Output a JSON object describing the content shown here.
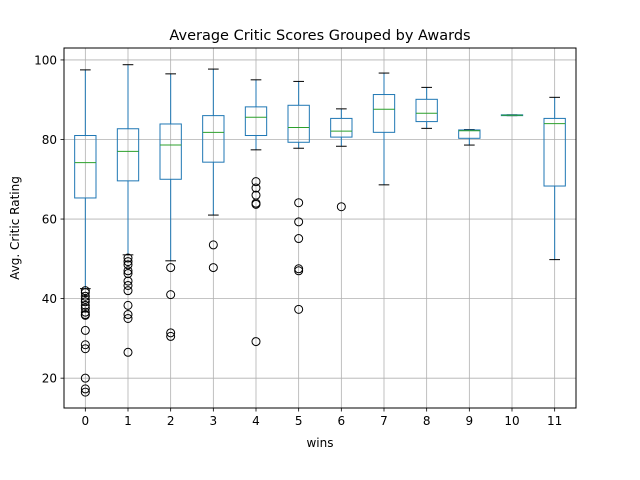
{
  "chart_data": {
    "type": "box",
    "title": "Average Critic Scores Grouped by Awards",
    "xlabel": "wins",
    "ylabel": "Avg. Critic Rating",
    "ylim": [
      12.5,
      103
    ],
    "yticks": [
      20,
      40,
      60,
      80,
      100
    ],
    "grid": true,
    "categories": [
      "0",
      "1",
      "2",
      "3",
      "4",
      "5",
      "6",
      "7",
      "8",
      "9",
      "10",
      "11"
    ],
    "boxes": [
      {
        "x": "0",
        "whisker_low": 42.5,
        "q1": 65.3,
        "median": 74.2,
        "q3": 81.0,
        "whisker_high": 97.5,
        "outliers": [
          42.0,
          41.5,
          40.6,
          39.8,
          39.2,
          38.3,
          37.6,
          36.6,
          36.0,
          35.8,
          32.0,
          28.4,
          27.4,
          20.0,
          17.3,
          16.5
        ]
      },
      {
        "x": "1",
        "whisker_low": 51.0,
        "q1": 69.6,
        "median": 77.0,
        "q3": 82.7,
        "whisker_high": 98.8,
        "outliers": [
          50.2,
          49.3,
          48.5,
          47.0,
          46.3,
          44.4,
          43.3,
          42.0,
          38.3,
          36.0,
          35.0,
          26.5
        ]
      },
      {
        "x": "2",
        "whisker_low": 49.5,
        "q1": 70.0,
        "median": 78.6,
        "q3": 83.9,
        "whisker_high": 96.5,
        "outliers": [
          47.8,
          41.0,
          31.4,
          30.5
        ]
      },
      {
        "x": "3",
        "whisker_low": 61.0,
        "q1": 74.3,
        "median": 81.8,
        "q3": 86.0,
        "whisker_high": 97.7,
        "outliers": [
          53.5,
          47.8
        ]
      },
      {
        "x": "4",
        "whisker_low": 77.4,
        "q1": 81.0,
        "median": 85.6,
        "q3": 88.2,
        "whisker_high": 95.0,
        "outliers": [
          69.4,
          67.8,
          66.0,
          64.0,
          63.7,
          29.2
        ]
      },
      {
        "x": "5",
        "whisker_low": 77.8,
        "q1": 79.3,
        "median": 83.0,
        "q3": 88.6,
        "whisker_high": 94.6,
        "outliers": [
          64.1,
          59.3,
          55.1,
          47.5,
          47.0,
          37.3
        ]
      },
      {
        "x": "6",
        "whisker_low": 78.3,
        "q1": 80.6,
        "median": 82.1,
        "q3": 85.3,
        "whisker_high": 87.7,
        "outliers": [
          63.1
        ]
      },
      {
        "x": "7",
        "whisker_low": 68.6,
        "q1": 81.8,
        "median": 87.6,
        "q3": 91.3,
        "whisker_high": 96.7,
        "outliers": []
      },
      {
        "x": "8",
        "whisker_low": 82.8,
        "q1": 84.5,
        "median": 86.6,
        "q3": 90.1,
        "whisker_high": 93.1,
        "outliers": []
      },
      {
        "x": "9",
        "whisker_low": 78.6,
        "q1": 80.3,
        "median": 82.2,
        "q3": 82.4,
        "whisker_high": 82.5,
        "outliers": []
      },
      {
        "x": "10",
        "whisker_low": 86.0,
        "q1": 86.0,
        "median": 86.1,
        "q3": 86.2,
        "whisker_high": 86.2,
        "outliers": []
      },
      {
        "x": "11",
        "whisker_low": 49.8,
        "q1": 68.3,
        "median": 84.0,
        "q3": 85.3,
        "whisker_high": 90.6,
        "outliers": []
      }
    ],
    "colors": {
      "box": "#1f77b4",
      "median": "#2ca02c",
      "grid": "#b0b0b0",
      "outlier": "#000000",
      "whisker_cap": "#000000"
    }
  }
}
